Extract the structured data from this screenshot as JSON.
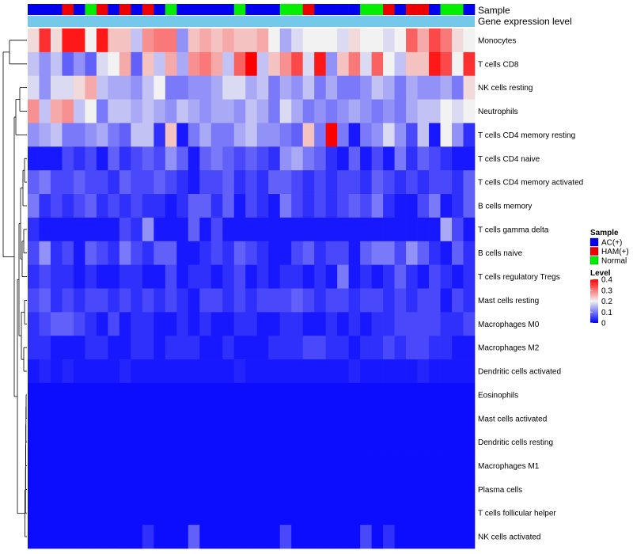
{
  "chart_data": {
    "type": "heatmap",
    "annotation_labels": [
      "Sample",
      "Gene expression level"
    ],
    "rows": [
      "Monocytes",
      "T cells CD8",
      "NK cells resting",
      "Neutrophils",
      "T cells CD4 memory resting",
      "T cells CD4 naive",
      "T cells CD4 memory activated",
      "B cells memory",
      "T cells gamma delta",
      "B cells naive",
      "T cells regulatory  Tregs",
      "Mast cells resting",
      "Macrophages M0",
      "Macrophages M2",
      "Dendritic cells activated",
      "Eosinophils",
      "Mast cells activated",
      "Dendritic cells resting",
      "Macrophages M1",
      "Plasma cells",
      "T cells follicular helper",
      "NK cells activated"
    ],
    "sample_groups": [
      "AC",
      "AC",
      "AC",
      "HAM",
      "AC",
      "Normal",
      "HAM",
      "AC",
      "HAM",
      "AC",
      "HAM",
      "AC",
      "Normal",
      "AC",
      "AC",
      "AC",
      "AC",
      "AC",
      "Normal",
      "AC",
      "AC",
      "AC",
      "Normal",
      "Normal",
      "HAM",
      "AC",
      "AC",
      "AC",
      "AC",
      "Normal",
      "Normal",
      "HAM",
      "AC",
      "HAM",
      "HAM",
      "AC",
      "Normal",
      "Normal",
      "AC"
    ],
    "values": [
      [
        0.22,
        0.36,
        0.22,
        0.38,
        0.38,
        0.2,
        0.38,
        0.24,
        0.24,
        0.16,
        0.28,
        0.3,
        0.3,
        0.12,
        0.24,
        0.26,
        0.24,
        0.26,
        0.24,
        0.24,
        0.26,
        0.2,
        0.14,
        0.18,
        0.2,
        0.2,
        0.2,
        0.18,
        0.22,
        0.2,
        0.2,
        0.18,
        0.2,
        0.32,
        0.26,
        0.34,
        0.3,
        0.22,
        0.2
      ],
      [
        0.16,
        0.12,
        0.16,
        0.08,
        0.12,
        0.08,
        0.18,
        0.2,
        0.26,
        0.08,
        0.24,
        0.16,
        0.26,
        0.14,
        0.28,
        0.3,
        0.26,
        0.16,
        0.32,
        0.4,
        0.16,
        0.24,
        0.28,
        0.34,
        0.18,
        0.38,
        0.12,
        0.24,
        0.3,
        0.18,
        0.32,
        0.2,
        0.16,
        0.24,
        0.24,
        0.38,
        0.34,
        0.2,
        0.36
      ],
      [
        0.18,
        0.12,
        0.18,
        0.18,
        0.22,
        0.26,
        0.16,
        0.14,
        0.14,
        0.12,
        0.16,
        0.2,
        0.1,
        0.1,
        0.12,
        0.12,
        0.14,
        0.18,
        0.18,
        0.14,
        0.16,
        0.1,
        0.14,
        0.12,
        0.16,
        0.1,
        0.14,
        0.1,
        0.1,
        0.12,
        0.16,
        0.14,
        0.1,
        0.14,
        0.12,
        0.12,
        0.14,
        0.1,
        0.22
      ],
      [
        0.28,
        0.16,
        0.26,
        0.28,
        0.16,
        0.2,
        0.1,
        0.16,
        0.16,
        0.14,
        0.16,
        0.14,
        0.12,
        0.16,
        0.14,
        0.12,
        0.14,
        0.14,
        0.12,
        0.16,
        0.14,
        0.1,
        0.18,
        0.14,
        0.1,
        0.12,
        0.1,
        0.12,
        0.14,
        0.12,
        0.1,
        0.12,
        0.1,
        0.14,
        0.16,
        0.16,
        0.2,
        0.18,
        0.2
      ],
      [
        0.12,
        0.14,
        0.16,
        0.1,
        0.1,
        0.12,
        0.14,
        0.1,
        0.08,
        0.16,
        0.16,
        0.04,
        0.24,
        0.02,
        0.1,
        0.14,
        0.1,
        0.1,
        0.14,
        0.16,
        0.12,
        0.12,
        0.1,
        0.08,
        0.24,
        0.1,
        0.4,
        0.1,
        0.02,
        0.1,
        0.12,
        0.18,
        0.12,
        0.06,
        0.16,
        0.02,
        0.2,
        0.12,
        0.04
      ],
      [
        0.02,
        0.02,
        0.02,
        0.06,
        0.04,
        0.06,
        0.02,
        0.08,
        0.04,
        0.06,
        0.08,
        0.06,
        0.12,
        0.08,
        0.02,
        0.08,
        0.1,
        0.08,
        0.06,
        0.08,
        0.06,
        0.04,
        0.12,
        0.14,
        0.1,
        0.08,
        0.04,
        0.02,
        0.08,
        0.02,
        0.06,
        0.02,
        0.1,
        0.04,
        0.08,
        0.06,
        0.04,
        0.02,
        0.02
      ],
      [
        0.08,
        0.1,
        0.06,
        0.06,
        0.08,
        0.06,
        0.06,
        0.04,
        0.08,
        0.06,
        0.06,
        0.08,
        0.06,
        0.04,
        0.02,
        0.06,
        0.06,
        0.08,
        0.04,
        0.06,
        0.04,
        0.08,
        0.08,
        0.06,
        0.04,
        0.06,
        0.04,
        0.06,
        0.06,
        0.04,
        0.08,
        0.06,
        0.04,
        0.06,
        0.04,
        0.06,
        0.06,
        0.04,
        0.08
      ],
      [
        0.1,
        0.04,
        0.06,
        0.04,
        0.06,
        0.08,
        0.04,
        0.06,
        0.04,
        0.06,
        0.04,
        0.04,
        0.02,
        0.04,
        0.08,
        0.08,
        0.04,
        0.08,
        0.02,
        0.06,
        0.04,
        0.02,
        0.1,
        0.06,
        0.04,
        0.06,
        0.04,
        0.06,
        0.08,
        0.06,
        0.1,
        0.04,
        0.02,
        0.02,
        0.06,
        0.1,
        0.02,
        0.04,
        0.08
      ],
      [
        0.04,
        0.02,
        0.02,
        0.02,
        0.02,
        0.02,
        0.02,
        0.02,
        0.06,
        0.04,
        0.12,
        0.02,
        0.02,
        0.02,
        0.08,
        0.02,
        0.06,
        0.02,
        0.02,
        0.02,
        0.02,
        0.02,
        0.02,
        0.02,
        0.02,
        0.02,
        0.02,
        0.02,
        0.02,
        0.02,
        0.02,
        0.02,
        0.02,
        0.02,
        0.02,
        0.02,
        0.14,
        0.06,
        0.02
      ],
      [
        0.06,
        0.12,
        0.04,
        0.06,
        0.02,
        0.08,
        0.06,
        0.04,
        0.1,
        0.06,
        0.04,
        0.08,
        0.08,
        0.02,
        0.02,
        0.04,
        0.06,
        0.04,
        0.08,
        0.06,
        0.04,
        0.02,
        0.02,
        0.06,
        0.08,
        0.04,
        0.06,
        0.06,
        0.02,
        0.08,
        0.1,
        0.1,
        0.06,
        0.12,
        0.08,
        0.04,
        0.02,
        0.08,
        0.04
      ],
      [
        0.04,
        0.06,
        0.04,
        0.04,
        0.02,
        0.04,
        0.02,
        0.02,
        0.04,
        0.04,
        0.02,
        0.02,
        0.06,
        0.02,
        0.04,
        0.04,
        0.02,
        0.04,
        0.06,
        0.02,
        0.04,
        0.02,
        0.04,
        0.04,
        0.02,
        0.04,
        0.02,
        0.1,
        0.02,
        0.04,
        0.02,
        0.04,
        0.08,
        0.04,
        0.02,
        0.06,
        0.04,
        0.02,
        0.04
      ],
      [
        0.06,
        0.08,
        0.04,
        0.06,
        0.04,
        0.06,
        0.06,
        0.04,
        0.06,
        0.04,
        0.06,
        0.04,
        0.06,
        0.04,
        0.02,
        0.06,
        0.06,
        0.04,
        0.06,
        0.04,
        0.06,
        0.06,
        0.06,
        0.08,
        0.06,
        0.04,
        0.06,
        0.06,
        0.04,
        0.06,
        0.06,
        0.04,
        0.06,
        0.04,
        0.06,
        0.06,
        0.02,
        0.06,
        0.04
      ],
      [
        0.04,
        0.06,
        0.08,
        0.08,
        0.06,
        0.04,
        0.02,
        0.06,
        0.02,
        0.04,
        0.04,
        0.02,
        0.02,
        0.04,
        0.02,
        0.04,
        0.02,
        0.02,
        0.04,
        0.04,
        0.02,
        0.02,
        0.04,
        0.04,
        0.02,
        0.02,
        0.04,
        0.02,
        0.04,
        0.02,
        0.04,
        0.04,
        0.06,
        0.06,
        0.06,
        0.06,
        0.04,
        0.04,
        0.06
      ],
      [
        0.04,
        0.04,
        0.02,
        0.02,
        0.02,
        0.04,
        0.04,
        0.02,
        0.02,
        0.04,
        0.04,
        0.02,
        0.04,
        0.04,
        0.04,
        0.02,
        0.02,
        0.04,
        0.02,
        0.02,
        0.02,
        0.04,
        0.04,
        0.04,
        0.06,
        0.06,
        0.04,
        0.04,
        0.02,
        0.04,
        0.04,
        0.06,
        0.04,
        0.06,
        0.06,
        0.04,
        0.04,
        0.02,
        0.02
      ],
      [
        0.02,
        0.03,
        0.02,
        0.03,
        0.02,
        0.02,
        0.02,
        0.02,
        0.03,
        0.02,
        0.02,
        0.02,
        0.02,
        0.02,
        0.02,
        0.02,
        0.02,
        0.02,
        0.03,
        0.02,
        0.02,
        0.02,
        0.02,
        0.02,
        0.02,
        0.02,
        0.02,
        0.02,
        0.03,
        0.02,
        0.02,
        0.02,
        0.02,
        0.02,
        0.03,
        0.02,
        0.02,
        0.02,
        0.02
      ],
      [
        0.01,
        0.01,
        0.01,
        0.01,
        0.01,
        0.01,
        0.01,
        0.01,
        0.01,
        0.01,
        0.01,
        0.01,
        0.01,
        0.01,
        0.01,
        0.01,
        0.01,
        0.01,
        0.01,
        0.01,
        0.01,
        0.01,
        0.01,
        0.01,
        0.01,
        0.01,
        0.01,
        0.01,
        0.01,
        0.01,
        0.01,
        0.01,
        0.01,
        0.01,
        0.01,
        0.01,
        0.01,
        0.01,
        0.01
      ],
      [
        0.01,
        0.01,
        0.01,
        0.01,
        0.01,
        0.01,
        0.01,
        0.01,
        0.01,
        0.01,
        0.01,
        0.01,
        0.01,
        0.01,
        0.01,
        0.01,
        0.01,
        0.01,
        0.01,
        0.01,
        0.01,
        0.01,
        0.01,
        0.01,
        0.01,
        0.01,
        0.01,
        0.01,
        0.01,
        0.01,
        0.01,
        0.01,
        0.01,
        0.01,
        0.01,
        0.01,
        0.01,
        0.01,
        0.01
      ],
      [
        0.01,
        0.01,
        0.01,
        0.01,
        0.01,
        0.01,
        0.01,
        0.01,
        0.01,
        0.01,
        0.01,
        0.01,
        0.01,
        0.01,
        0.01,
        0.01,
        0.01,
        0.01,
        0.01,
        0.01,
        0.01,
        0.01,
        0.01,
        0.01,
        0.01,
        0.01,
        0.01,
        0.01,
        0.01,
        0.01,
        0.01,
        0.01,
        0.01,
        0.01,
        0.01,
        0.01,
        0.01,
        0.01,
        0.01
      ],
      [
        0.01,
        0.01,
        0.01,
        0.01,
        0.01,
        0.01,
        0.01,
        0.01,
        0.01,
        0.01,
        0.01,
        0.01,
        0.01,
        0.01,
        0.01,
        0.01,
        0.01,
        0.01,
        0.01,
        0.01,
        0.01,
        0.01,
        0.01,
        0.01,
        0.01,
        0.01,
        0.01,
        0.01,
        0.01,
        0.01,
        0.01,
        0.01,
        0.01,
        0.01,
        0.01,
        0.01,
        0.01,
        0.01,
        0.01
      ],
      [
        0.01,
        0.01,
        0.01,
        0.01,
        0.01,
        0.01,
        0.01,
        0.01,
        0.01,
        0.01,
        0.01,
        0.01,
        0.01,
        0.01,
        0.01,
        0.01,
        0.01,
        0.01,
        0.01,
        0.01,
        0.01,
        0.01,
        0.01,
        0.01,
        0.01,
        0.01,
        0.01,
        0.01,
        0.01,
        0.01,
        0.01,
        0.01,
        0.01,
        0.01,
        0.01,
        0.01,
        0.01,
        0.01,
        0.01
      ],
      [
        0.01,
        0.01,
        0.01,
        0.01,
        0.01,
        0.01,
        0.01,
        0.01,
        0.01,
        0.01,
        0.01,
        0.01,
        0.01,
        0.01,
        0.01,
        0.01,
        0.01,
        0.01,
        0.01,
        0.01,
        0.01,
        0.01,
        0.01,
        0.01,
        0.01,
        0.01,
        0.01,
        0.01,
        0.01,
        0.01,
        0.01,
        0.01,
        0.01,
        0.01,
        0.01,
        0.01,
        0.01,
        0.01,
        0.01
      ],
      [
        0.01,
        0.01,
        0.01,
        0.01,
        0.01,
        0.01,
        0.01,
        0.01,
        0.01,
        0.01,
        0.04,
        0.01,
        0.01,
        0.01,
        0.08,
        0.01,
        0.01,
        0.01,
        0.01,
        0.01,
        0.01,
        0.01,
        0.06,
        0.01,
        0.01,
        0.01,
        0.01,
        0.01,
        0.01,
        0.06,
        0.01,
        0.04,
        0.01,
        0.01,
        0.01,
        0.01,
        0.01,
        0.01,
        0.01
      ]
    ],
    "legend": {
      "sample_title": "Sample",
      "sample_entries": [
        {
          "key": "AC",
          "label": "AC(+)",
          "color": "#0000ee"
        },
        {
          "key": "HAM",
          "label": "HAM(+)",
          "color": "#ee0000"
        },
        {
          "key": "Normal",
          "label": "Normal",
          "color": "#00ee00"
        }
      ],
      "level_title": "Level",
      "level_ticks": [
        "0.4",
        "0.3",
        "0.2",
        "0.1",
        "0"
      ],
      "level_min": 0,
      "level_max": 0.4
    },
    "colors": {
      "low": "#0000ff",
      "mid": "#f2f2f2",
      "high": "#ff0000",
      "gene_expression_bar": "#74c8ea"
    }
  }
}
